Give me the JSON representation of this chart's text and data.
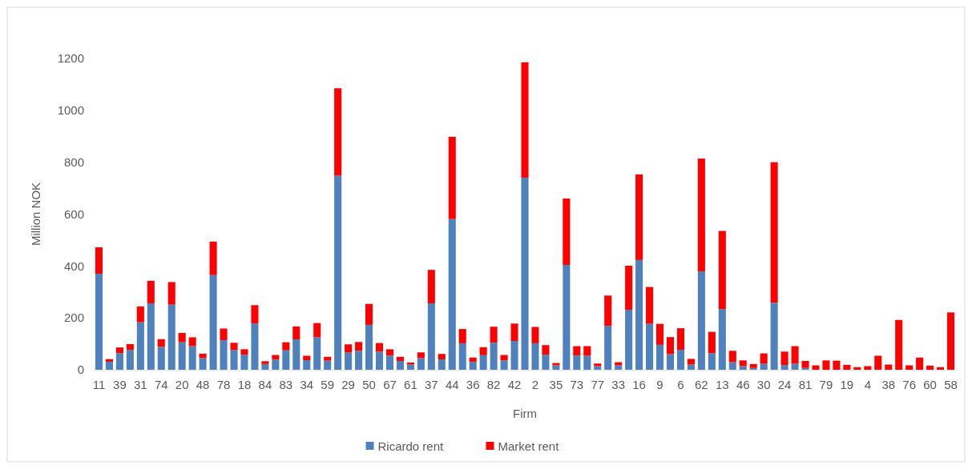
{
  "chart_data": {
    "type": "bar",
    "stacked": true,
    "xlabel": "Firm",
    "ylabel": "Million NOK",
    "ylim": [
      0,
      1200
    ],
    "yticks": [
      0,
      200,
      400,
      600,
      800,
      1000,
      1200
    ],
    "grid": false,
    "legend": "bottom",
    "categories": [
      "11",
      null,
      "39",
      null,
      "31",
      null,
      "74",
      null,
      "20",
      null,
      "48",
      null,
      "78",
      null,
      "18",
      null,
      "84",
      null,
      "83",
      null,
      "34",
      null,
      "59",
      null,
      "29",
      null,
      "50",
      null,
      "67",
      null,
      "61",
      null,
      "37",
      null,
      "44",
      null,
      "36",
      null,
      "82",
      null,
      "42",
      null,
      "2",
      null,
      "35",
      null,
      "73",
      null,
      "77",
      null,
      "33",
      null,
      "16",
      null,
      "9",
      null,
      "6",
      null,
      "62",
      null,
      "13",
      null,
      "46",
      null,
      "30",
      null,
      "24",
      null,
      "81",
      null,
      "79",
      null,
      "19",
      null,
      "4",
      null,
      "38",
      null,
      "76",
      null,
      "60",
      null,
      "58"
    ],
    "series": [
      {
        "name": "Ricardo rent",
        "color": "#4f81bd",
        "values": [
          370,
          31,
          64,
          76,
          183,
          256,
          88,
          251,
          106,
          91,
          45,
          365,
          114,
          76,
          58,
          178,
          22,
          39,
          75,
          117,
          37,
          125,
          35,
          748,
          66,
          73,
          173,
          70,
          54,
          34,
          20,
          45,
          256,
          40,
          581,
          102,
          30,
          56,
          104,
          36,
          111,
          740,
          102,
          58,
          17,
          404,
          55,
          54,
          14,
          169,
          17,
          231,
          423,
          177,
          96,
          60,
          77,
          20,
          379,
          64,
          234,
          29,
          14,
          7,
          23,
          258,
          18,
          23,
          7,
          0,
          0,
          0,
          0,
          0,
          0,
          0,
          0,
          0,
          0,
          0,
          0,
          0,
          0
        ]
      },
      {
        "name": "Market rent",
        "color": "#ff0000",
        "values": [
          102,
          10,
          22,
          23,
          61,
          87,
          30,
          87,
          36,
          34,
          17,
          129,
          45,
          28,
          21,
          71,
          11,
          18,
          31,
          50,
          17,
          55,
          15,
          337,
          32,
          34,
          81,
          33,
          25,
          16,
          8,
          22,
          129,
          21,
          317,
          55,
          17,
          31,
          62,
          21,
          67,
          445,
          63,
          37,
          9,
          256,
          36,
          37,
          10,
          117,
          12,
          170,
          330,
          142,
          81,
          66,
          83,
          22,
          435,
          82,
          301,
          44,
          22,
          15,
          40,
          542,
          52,
          68,
          27,
          17,
          36,
          35,
          19,
          10,
          14,
          54,
          20,
          192,
          17,
          47,
          16,
          10,
          221
        ]
      }
    ]
  }
}
